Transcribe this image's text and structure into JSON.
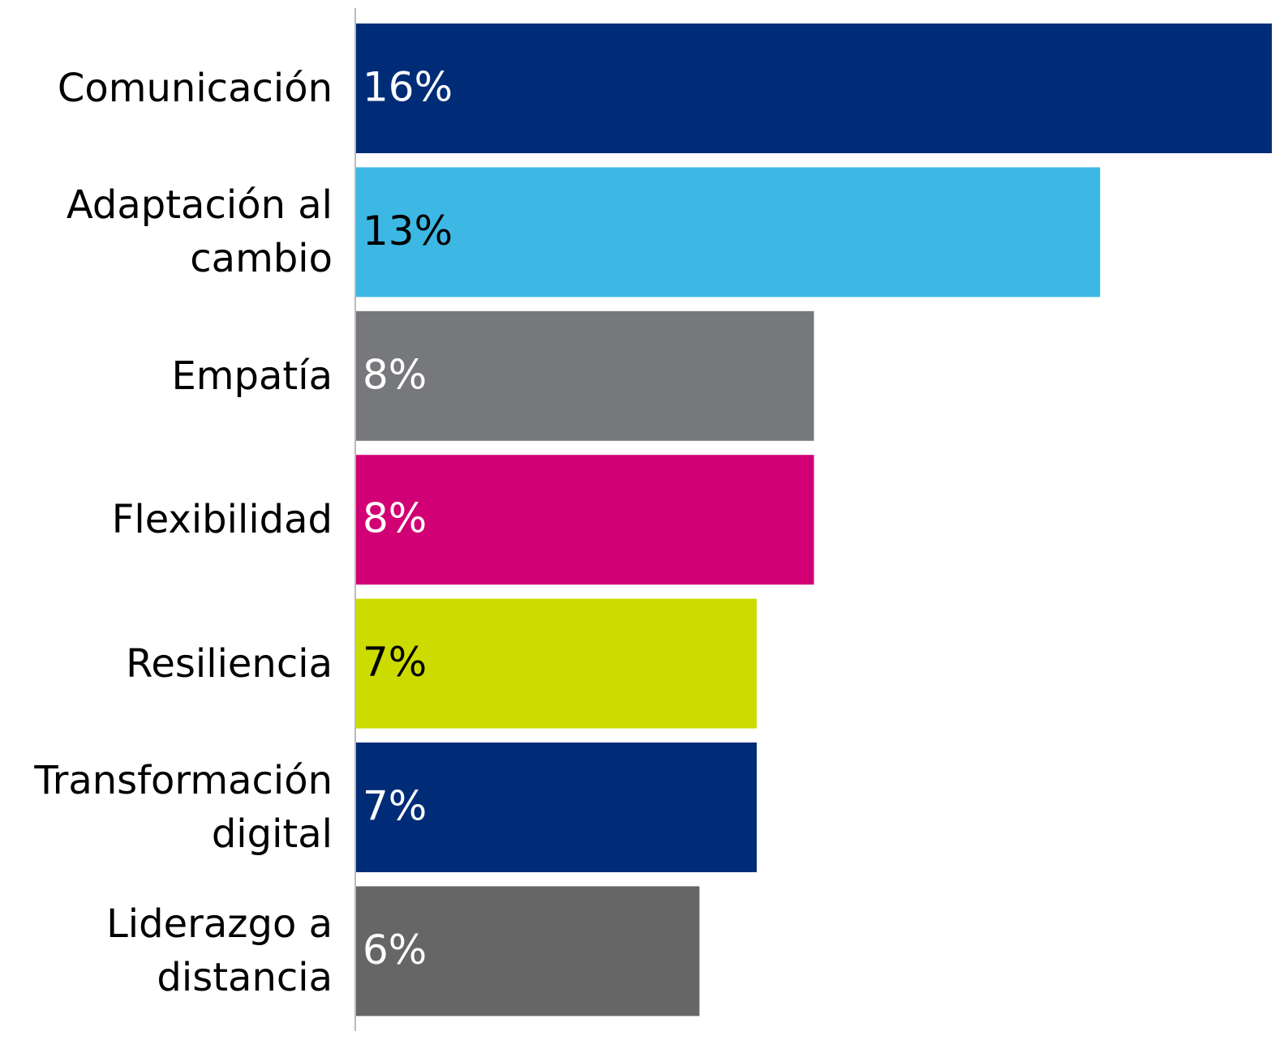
{
  "chart_data": {
    "type": "bar",
    "orientation": "horizontal",
    "categories": [
      "Comunicación",
      "Adaptación al cambio",
      "Empatía",
      "Flexibilidad",
      "Resiliencia",
      "Transformación digital",
      "Liderazgo a distancia"
    ],
    "values": [
      16,
      13,
      8,
      8,
      7,
      7,
      6
    ],
    "value_labels": [
      "16%",
      "13%",
      "8%",
      "8%",
      "7%",
      "7%",
      "6%"
    ],
    "colors": [
      "#002c77",
      "#3db8e4",
      "#77787b",
      "#d10074",
      "#cddc00",
      "#002c77",
      "#666666"
    ],
    "label_colors": [
      "#ffffff",
      "#000000",
      "#ffffff",
      "#ffffff",
      "#000000",
      "#ffffff",
      "#ffffff"
    ]
  }
}
